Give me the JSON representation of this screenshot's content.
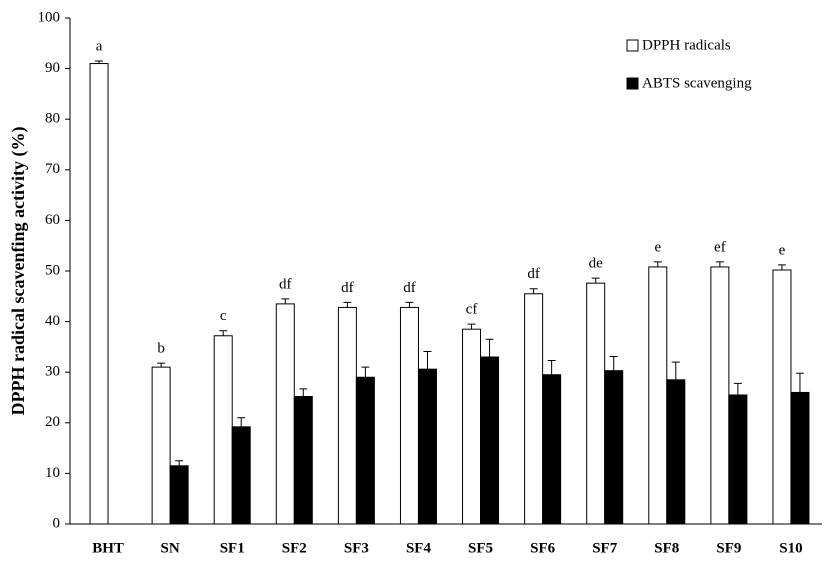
{
  "chart_data": {
    "type": "bar",
    "ylabel": "DPPH  radical scavenfing activity (%)",
    "categories": [
      "BHT",
      "SN",
      "SF1",
      "SF2",
      "SF3",
      "SF4",
      "SF5",
      "SF6",
      "SF7",
      "SF8",
      "SF9",
      "S10"
    ],
    "series": [
      {
        "name": "DPPH radicals",
        "color": "#ffffff",
        "values": [
          91,
          31,
          37.2,
          43.5,
          42.8,
          42.8,
          38.5,
          45.5,
          47.6,
          50.8,
          50.8,
          50.2
        ],
        "errors": [
          0.5,
          0.8,
          1,
          1,
          1,
          1,
          1,
          1,
          1,
          1,
          1,
          1
        ]
      },
      {
        "name": "ABTS scavenging",
        "color": "#000000",
        "values": [
          null,
          11.5,
          19.2,
          25.2,
          29,
          30.6,
          33,
          29.5,
          30.3,
          28.5,
          25.5,
          26
        ],
        "errors": [
          null,
          1,
          1.8,
          1.5,
          2,
          3.5,
          3.5,
          2.8,
          2.8,
          3.5,
          2.3,
          3.8
        ]
      }
    ],
    "annotations": [
      "a",
      "b",
      "c",
      "df",
      "df",
      "df",
      "cf",
      "df",
      "de",
      "e",
      "ef",
      "e"
    ],
    "ylim": [
      0,
      100
    ],
    "yticks": [
      0,
      10,
      20,
      30,
      40,
      50,
      60,
      70,
      80,
      90,
      100
    ],
    "grid": false,
    "legend": "upper right"
  }
}
